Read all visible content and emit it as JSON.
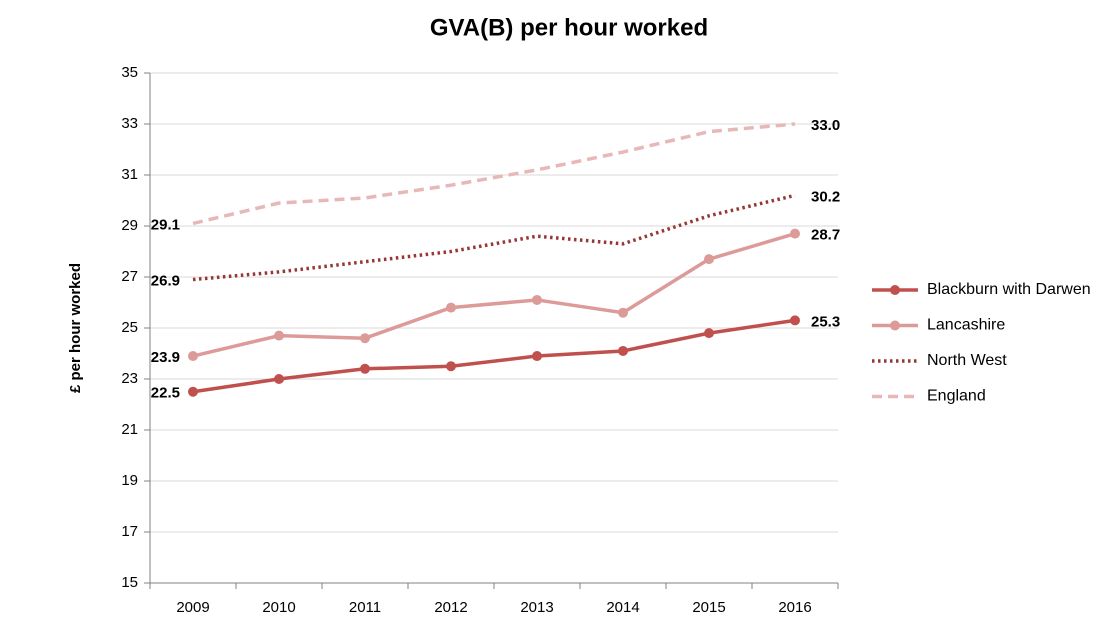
{
  "chart_data": {
    "type": "line",
    "title": "GVA(B) per hour worked",
    "y_label": "£ per hour worked",
    "categories": [
      "2009",
      "2010",
      "2011",
      "2012",
      "2013",
      "2014",
      "2015",
      "2016"
    ],
    "series": [
      {
        "name": "Blackburn with Darwen",
        "color": "#c0504d",
        "style": "solid",
        "markers": true,
        "values": [
          22.5,
          23.0,
          23.4,
          23.5,
          23.9,
          24.1,
          24.8,
          25.3
        ],
        "value_labels": [
          "22.5",
          null,
          null,
          null,
          null,
          null,
          null,
          "25.3"
        ]
      },
      {
        "name": "Lancashire",
        "color": "#dc9a99",
        "style": "solid",
        "markers": true,
        "values": [
          23.9,
          24.7,
          24.6,
          25.8,
          26.1,
          25.6,
          27.7,
          28.7
        ],
        "value_labels": [
          "23.9",
          null,
          null,
          null,
          null,
          null,
          null,
          "28.7"
        ]
      },
      {
        "name": "North West",
        "color": "#953735",
        "style": "dotted",
        "markers": false,
        "values": [
          26.9,
          27.2,
          27.6,
          28.0,
          28.6,
          28.3,
          29.4,
          30.2
        ],
        "value_labels": [
          "26.9",
          null,
          null,
          null,
          null,
          null,
          null,
          "30.2"
        ]
      },
      {
        "name": "England",
        "color": "#e6b9b8",
        "style": "dashed",
        "markers": false,
        "values": [
          29.1,
          29.9,
          30.1,
          30.6,
          31.2,
          31.9,
          32.7,
          33.0
        ],
        "value_labels": [
          "29.1",
          null,
          null,
          null,
          null,
          null,
          null,
          "33.0"
        ]
      }
    ],
    "ylim": [
      15,
      35
    ],
    "yticks": [
      15,
      17,
      19,
      21,
      23,
      25,
      27,
      29,
      31,
      33,
      35
    ],
    "grid": true,
    "legend": "right"
  }
}
